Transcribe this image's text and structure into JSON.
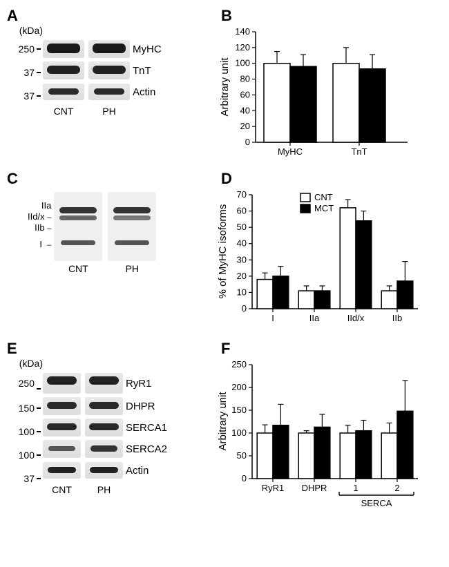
{
  "colors": {
    "background": "#ffffff",
    "text": "#000000",
    "bar_cnt_fill": "#ffffff",
    "bar_mct_fill": "#000000",
    "bar_stroke": "#000000",
    "axis": "#000000",
    "gel_light": "#e6e6e6",
    "gel_band": "#3a3a3a"
  },
  "panelA": {
    "label": "A",
    "kda_label": "(kDa)",
    "mw_markers": [
      "250",
      "37",
      "37"
    ],
    "proteins": [
      "MyHC",
      "TnT",
      "Actin"
    ],
    "lanes": [
      "CNT",
      "PH"
    ]
  },
  "panelB": {
    "label": "B",
    "type": "bar",
    "ylabel": "Arbitrary unit",
    "ylim": [
      0,
      140
    ],
    "ytick_step": 20,
    "categories": [
      "MyHC",
      "TnT"
    ],
    "series": [
      {
        "name": "CNT",
        "fill": "#ffffff",
        "values": [
          100,
          100
        ],
        "err": [
          15,
          20
        ]
      },
      {
        "name": "MCT",
        "fill": "#000000",
        "values": [
          96,
          93
        ],
        "err": [
          15,
          18
        ]
      }
    ],
    "bar_width": 0.38,
    "label_fontsize": 15,
    "tick_fontsize": 13
  },
  "panelC": {
    "label": "C",
    "isoform_labels": [
      "IIa",
      "IId/x",
      "IIb",
      "I"
    ],
    "lanes": [
      "CNT",
      "PH"
    ]
  },
  "panelD": {
    "label": "D",
    "type": "bar",
    "ylabel": "% of MyHC isoforms",
    "ylim": [
      0,
      70
    ],
    "ytick_step": 10,
    "categories": [
      "I",
      "IIa",
      "IId/x",
      "IIb"
    ],
    "legend": [
      {
        "name": "CNT",
        "fill": "#ffffff"
      },
      {
        "name": "MCT",
        "fill": "#000000"
      }
    ],
    "series": [
      {
        "name": "CNT",
        "fill": "#ffffff",
        "values": [
          18,
          11,
          62,
          11
        ],
        "err": [
          4,
          3,
          5,
          3
        ]
      },
      {
        "name": "MCT",
        "fill": "#000000",
        "values": [
          20,
          11,
          54,
          17
        ],
        "err": [
          6,
          3,
          6,
          12
        ]
      }
    ],
    "bar_width": 0.38
  },
  "panelE": {
    "label": "E",
    "kda_label": "(kDa)",
    "mw_markers": [
      "250",
      "150",
      "100",
      "100",
      "37"
    ],
    "proteins": [
      "RyR1",
      "DHPR",
      "SERCA1",
      "SERCA2",
      "Actin"
    ],
    "lanes": [
      "CNT",
      "PH"
    ]
  },
  "panelF": {
    "label": "F",
    "type": "bar",
    "ylabel": "Arbitrary unit",
    "ylim": [
      0,
      250
    ],
    "ytick_step": 50,
    "categories": [
      "RyR1",
      "DHPR",
      "1",
      "2"
    ],
    "group_label": "SERCA",
    "series": [
      {
        "name": "CNT",
        "fill": "#ffffff",
        "values": [
          100,
          100,
          100,
          100
        ],
        "err": [
          18,
          5,
          17,
          22
        ]
      },
      {
        "name": "MCT",
        "fill": "#000000",
        "values": [
          117,
          113,
          105,
          148
        ],
        "err": [
          46,
          28,
          23,
          67
        ]
      }
    ],
    "bar_width": 0.38
  }
}
